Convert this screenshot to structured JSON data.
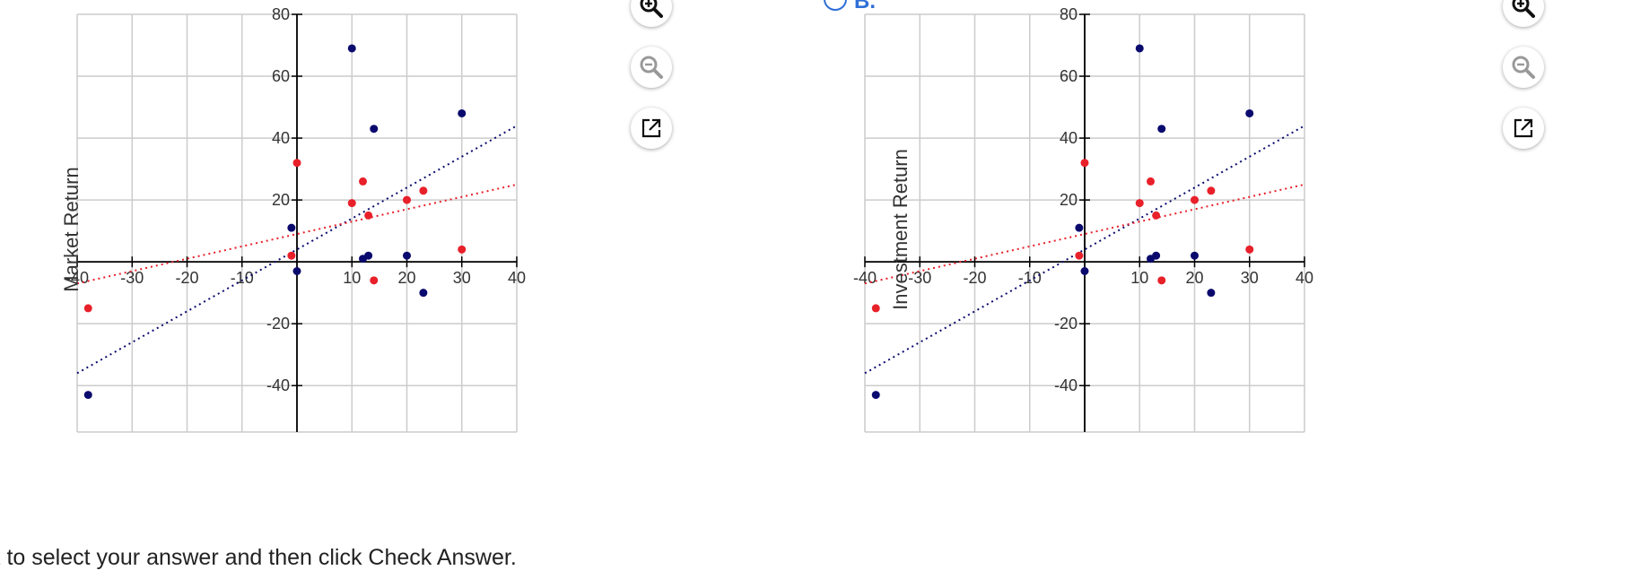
{
  "instruction": "k to select your answer and then click Check Answer.",
  "choices": [
    {
      "letter": "B.",
      "ylabel": "Investment Return"
    }
  ],
  "panels": [
    {
      "ylabel": "Market Return"
    },
    {
      "ylabel": "Investment Return"
    }
  ],
  "tools": {
    "zoom_in": "zoom-in-icon",
    "zoom_out": "zoom-out-icon",
    "popout": "external-link-icon"
  },
  "colors": {
    "blue_series": "#0a0a6e",
    "red_series": "#e8202a",
    "grid": "#cccccc",
    "axis": "#000000"
  },
  "chart_data": [
    {
      "type": "scatter",
      "title": "",
      "xlabel": "",
      "ylabel": "Market Return",
      "xlim": [
        -40,
        40
      ],
      "ylim": [
        -55,
        80
      ],
      "xticks": [
        -40,
        -30,
        -20,
        -10,
        10,
        20,
        30,
        40
      ],
      "yticks": [
        -40,
        -20,
        20,
        40,
        60,
        80
      ],
      "grid": true,
      "series": [
        {
          "color": "blue",
          "points": [
            [
              10,
              69
            ],
            [
              14,
              43
            ],
            [
              30,
              48
            ],
            [
              -1,
              11
            ],
            [
              0,
              -3
            ],
            [
              12,
              1
            ],
            [
              13,
              2
            ],
            [
              20,
              2
            ],
            [
              23,
              -10
            ],
            [
              -38,
              -43
            ]
          ],
          "trendline": [
            [
              -40,
              -36
            ],
            [
              40,
              44
            ]
          ]
        },
        {
          "color": "red",
          "points": [
            [
              0,
              32
            ],
            [
              12,
              26
            ],
            [
              10,
              19
            ],
            [
              13,
              15
            ],
            [
              20,
              20
            ],
            [
              23,
              23
            ],
            [
              -1,
              2
            ],
            [
              30,
              4
            ],
            [
              14,
              -6
            ],
            [
              -38,
              -15
            ]
          ],
          "trendline": [
            [
              -40,
              -7
            ],
            [
              40,
              25
            ]
          ]
        }
      ]
    },
    {
      "type": "scatter",
      "title": "",
      "xlabel": "",
      "ylabel": "Investment Return",
      "xlim": [
        -40,
        40
      ],
      "ylim": [
        -55,
        80
      ],
      "xticks": [
        -40,
        -30,
        -20,
        -10,
        10,
        20,
        30,
        40
      ],
      "yticks": [
        -40,
        -20,
        20,
        40,
        60,
        80
      ],
      "grid": true,
      "series": [
        {
          "color": "blue",
          "points": [
            [
              10,
              69
            ],
            [
              14,
              43
            ],
            [
              30,
              48
            ],
            [
              -1,
              11
            ],
            [
              0,
              -3
            ],
            [
              12,
              1
            ],
            [
              13,
              2
            ],
            [
              20,
              2
            ],
            [
              23,
              -10
            ],
            [
              -38,
              -43
            ]
          ],
          "trendline": [
            [
              -40,
              -36
            ],
            [
              40,
              44
            ]
          ]
        },
        {
          "color": "red",
          "points": [
            [
              0,
              32
            ],
            [
              12,
              26
            ],
            [
              10,
              19
            ],
            [
              13,
              15
            ],
            [
              20,
              20
            ],
            [
              23,
              23
            ],
            [
              -1,
              2
            ],
            [
              30,
              4
            ],
            [
              14,
              -6
            ],
            [
              -38,
              -15
            ]
          ],
          "trendline": [
            [
              -40,
              -7
            ],
            [
              40,
              25
            ]
          ]
        }
      ]
    }
  ]
}
